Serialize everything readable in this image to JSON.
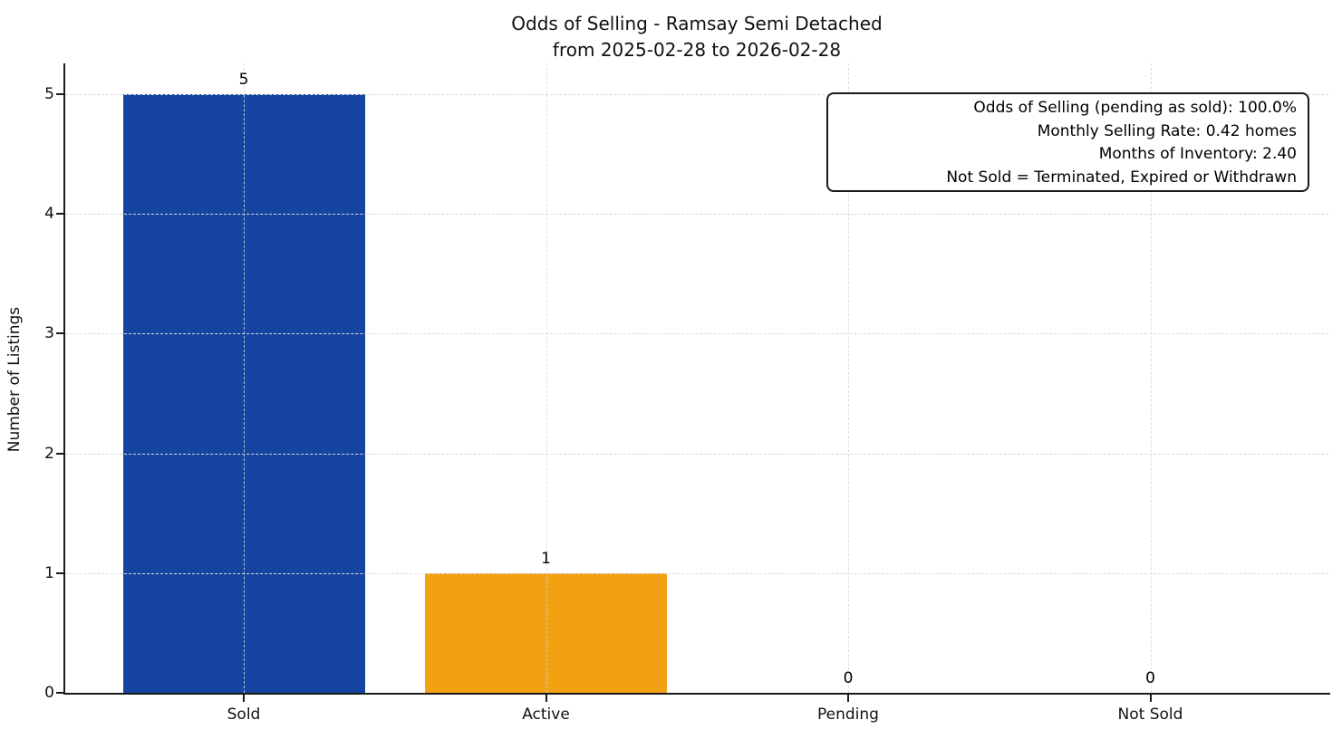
{
  "figure": {
    "background": "#ffffff",
    "title_line1": "Odds of Selling - Ramsay Semi Detached",
    "title_line2": "from 2025-02-28 to 2026-02-28"
  },
  "chart_data": {
    "type": "bar",
    "title": "Odds of Selling - Ramsay Semi Detached\nfrom 2025-02-28 to 2026-02-28",
    "categories": [
      "Sold",
      "Active",
      "Pending",
      "Not Sold"
    ],
    "values": [
      5,
      1,
      0,
      0
    ],
    "value_labels": [
      "5",
      "1",
      "0",
      "0"
    ],
    "bar_colors": [
      "#1545a0",
      "#f2a113",
      null,
      null
    ],
    "xlabel": "",
    "ylabel": "Number of Listings",
    "ylim": [
      0,
      5.26
    ],
    "yticks": [
      "0",
      "1",
      "2",
      "3",
      "4",
      "5"
    ],
    "grid": {
      "style": "dashed",
      "color": "#d9d9d9",
      "axes": "both",
      "on": true
    },
    "legend": null,
    "axis_color": "#1a1a1a",
    "text_color": "#000000",
    "annotation": {
      "position": "top-right",
      "lines": [
        "Odds of Selling (pending as sold): 100.0%",
        "Monthly Selling Rate: 0.42 homes",
        "Months of Inventory: 2.40",
        "Not Sold = Terminated, Expired or Withdrawn"
      ]
    }
  }
}
